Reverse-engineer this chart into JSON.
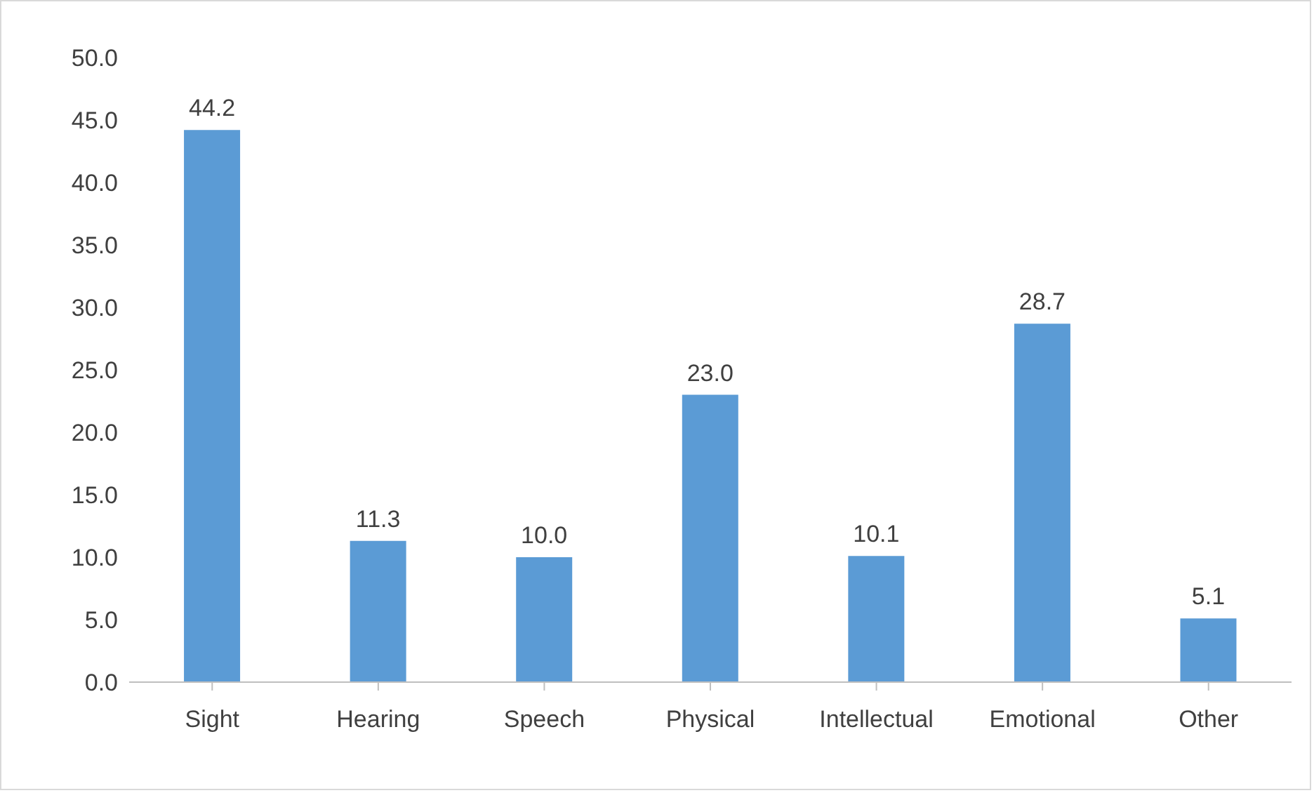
{
  "chart_data": {
    "type": "bar",
    "categories": [
      "Sight",
      "Hearing",
      "Speech",
      "Physical",
      "Intellectual",
      "Emotional",
      "Other"
    ],
    "values": [
      44.2,
      11.3,
      10.0,
      23.0,
      10.1,
      28.7,
      5.1
    ],
    "color": "#5b9bd5",
    "ylim": [
      0,
      50
    ],
    "yticks": [
      {
        "value": 0,
        "label": "0.0"
      },
      {
        "value": 5,
        "label": "5.0"
      },
      {
        "value": 10,
        "label": "10.0"
      },
      {
        "value": 15,
        "label": "15.0"
      },
      {
        "value": 20,
        "label": "20.0"
      },
      {
        "value": 25,
        "label": "25.0"
      },
      {
        "value": 30,
        "label": "30.0"
      },
      {
        "value": 35,
        "label": "35.0"
      },
      {
        "value": 40,
        "label": "40.0"
      },
      {
        "value": 45,
        "label": "45.0"
      },
      {
        "value": 50,
        "label": "50.0"
      }
    ],
    "value_labels": [
      "44.2",
      "11.3",
      "10.0",
      "23.0",
      "10.1",
      "28.7",
      "5.1"
    ],
    "grid": false,
    "legend": false
  }
}
